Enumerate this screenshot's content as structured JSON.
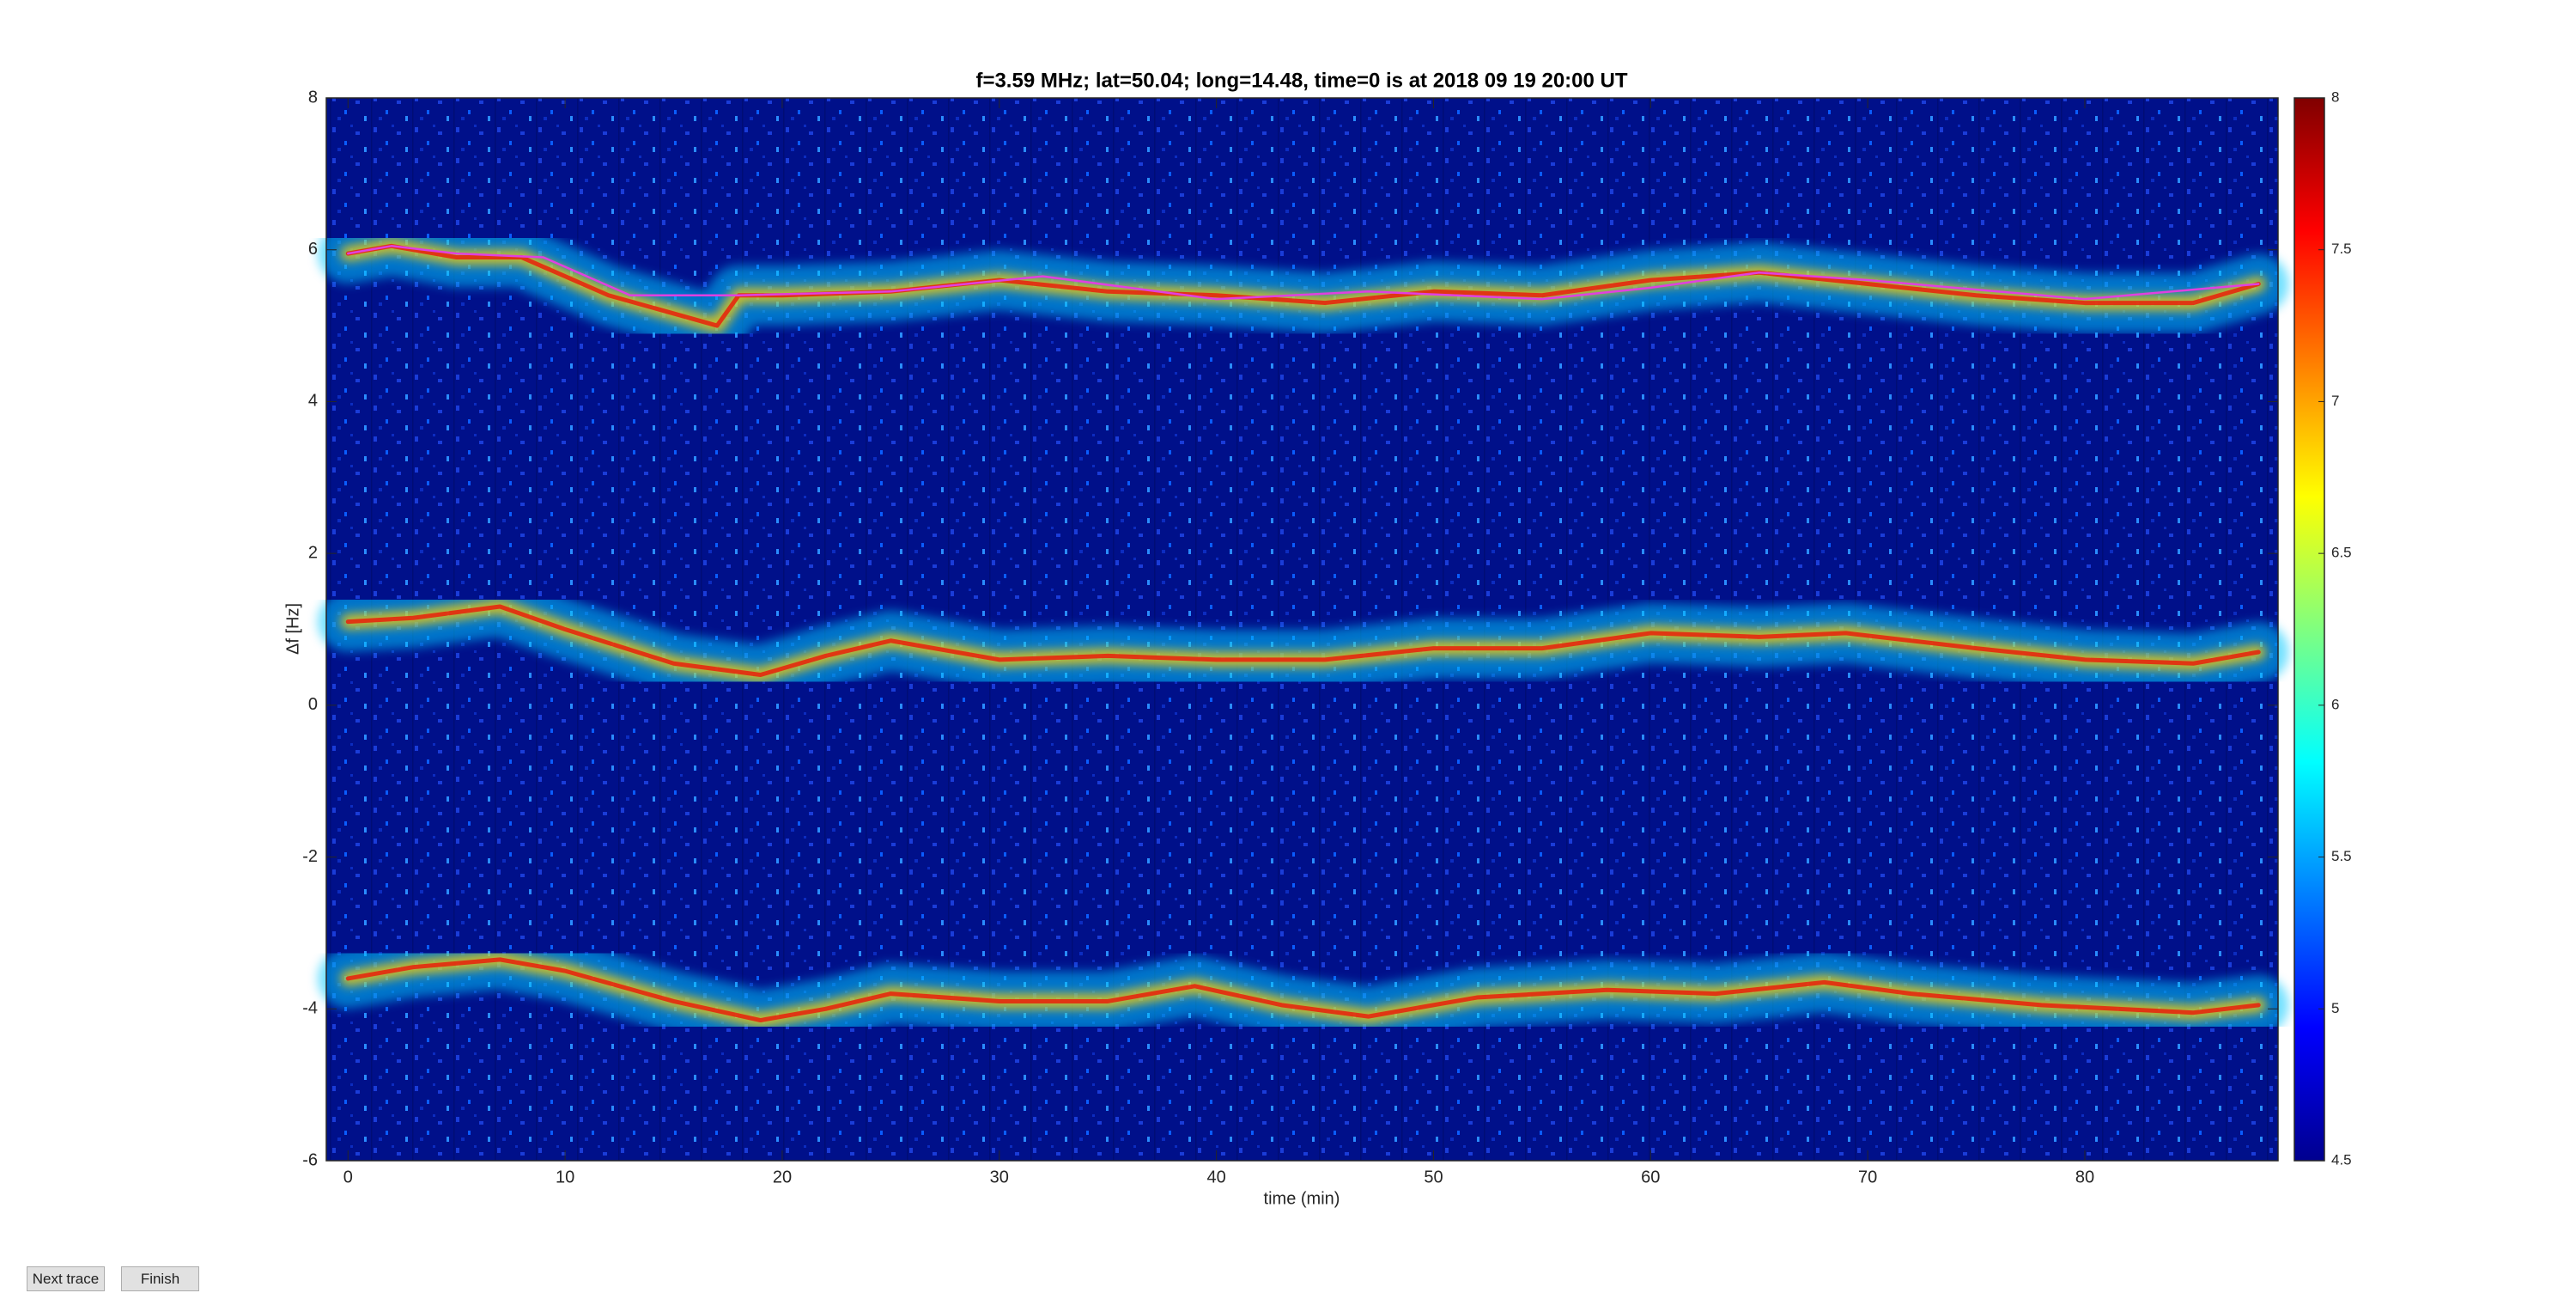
{
  "chart_data": {
    "type": "spectrogram",
    "title": "f=3.59 MHz;  lat=50.04; long=14.48, time=0 is at 2018 09 19 20:00 UT",
    "xlabel": "time (min)",
    "ylabel": "Δf [Hz]",
    "xlim": [
      -1,
      88.9
    ],
    "ylim": [
      -6,
      8
    ],
    "xticks": [
      0,
      10,
      20,
      30,
      40,
      50,
      60,
      70,
      80
    ],
    "yticks": [
      -6,
      -4,
      -2,
      0,
      2,
      4,
      6,
      8
    ],
    "clim": [
      4.5,
      8
    ],
    "cticks": [
      4.5,
      5,
      5.5,
      6,
      6.5,
      7,
      7.5,
      8
    ],
    "colormap": "jet",
    "background": "#00108a",
    "series": [
      {
        "mode": "band",
        "color": "#ffd200",
        "x": [
          0,
          2,
          5,
          8,
          12,
          17,
          18,
          20,
          25,
          30,
          35,
          40,
          45,
          50,
          55,
          60,
          65,
          70,
          75,
          80,
          85,
          88
        ],
        "values": [
          5.95,
          6.05,
          5.9,
          5.9,
          5.4,
          5.0,
          5.4,
          5.4,
          5.45,
          5.6,
          5.45,
          5.4,
          5.3,
          5.45,
          5.4,
          5.6,
          5.7,
          5.55,
          5.4,
          5.3,
          5.3,
          5.55
        ]
      },
      {
        "mode": "line",
        "color": "#e040e0",
        "x": [
          0,
          2,
          5,
          9,
          13,
          18,
          25,
          32,
          40,
          47,
          55,
          60,
          65,
          70,
          80,
          88
        ],
        "values": [
          5.95,
          6.05,
          5.95,
          5.9,
          5.4,
          5.4,
          5.45,
          5.65,
          5.35,
          5.45,
          5.35,
          5.5,
          5.7,
          5.6,
          5.35,
          5.55
        ]
      },
      {
        "mode": "band",
        "color": "#ffd200",
        "x": [
          0,
          3,
          7,
          10,
          15,
          19,
          22,
          25,
          30,
          35,
          40,
          45,
          50,
          55,
          60,
          65,
          69,
          75,
          80,
          85,
          88
        ],
        "values": [
          1.1,
          1.15,
          1.3,
          1.0,
          0.55,
          0.4,
          0.65,
          0.85,
          0.6,
          0.65,
          0.6,
          0.6,
          0.75,
          0.75,
          0.95,
          0.9,
          0.95,
          0.75,
          0.6,
          0.55,
          0.7
        ]
      },
      {
        "mode": "band",
        "color": "#ffd200",
        "x": [
          0,
          3,
          7,
          10,
          15,
          19,
          22,
          25,
          30,
          35,
          39,
          43,
          47,
          52,
          58,
          63,
          68,
          72,
          78,
          85,
          88
        ],
        "values": [
          -3.6,
          -3.45,
          -3.35,
          -3.5,
          -3.9,
          -4.15,
          -4.0,
          -3.8,
          -3.9,
          -3.9,
          -3.7,
          -3.95,
          -4.1,
          -3.85,
          -3.75,
          -3.8,
          -3.65,
          -3.8,
          -3.95,
          -4.05,
          -3.95
        ]
      }
    ]
  },
  "ui": {
    "buttons": [
      "Next trace",
      "Finish"
    ]
  }
}
